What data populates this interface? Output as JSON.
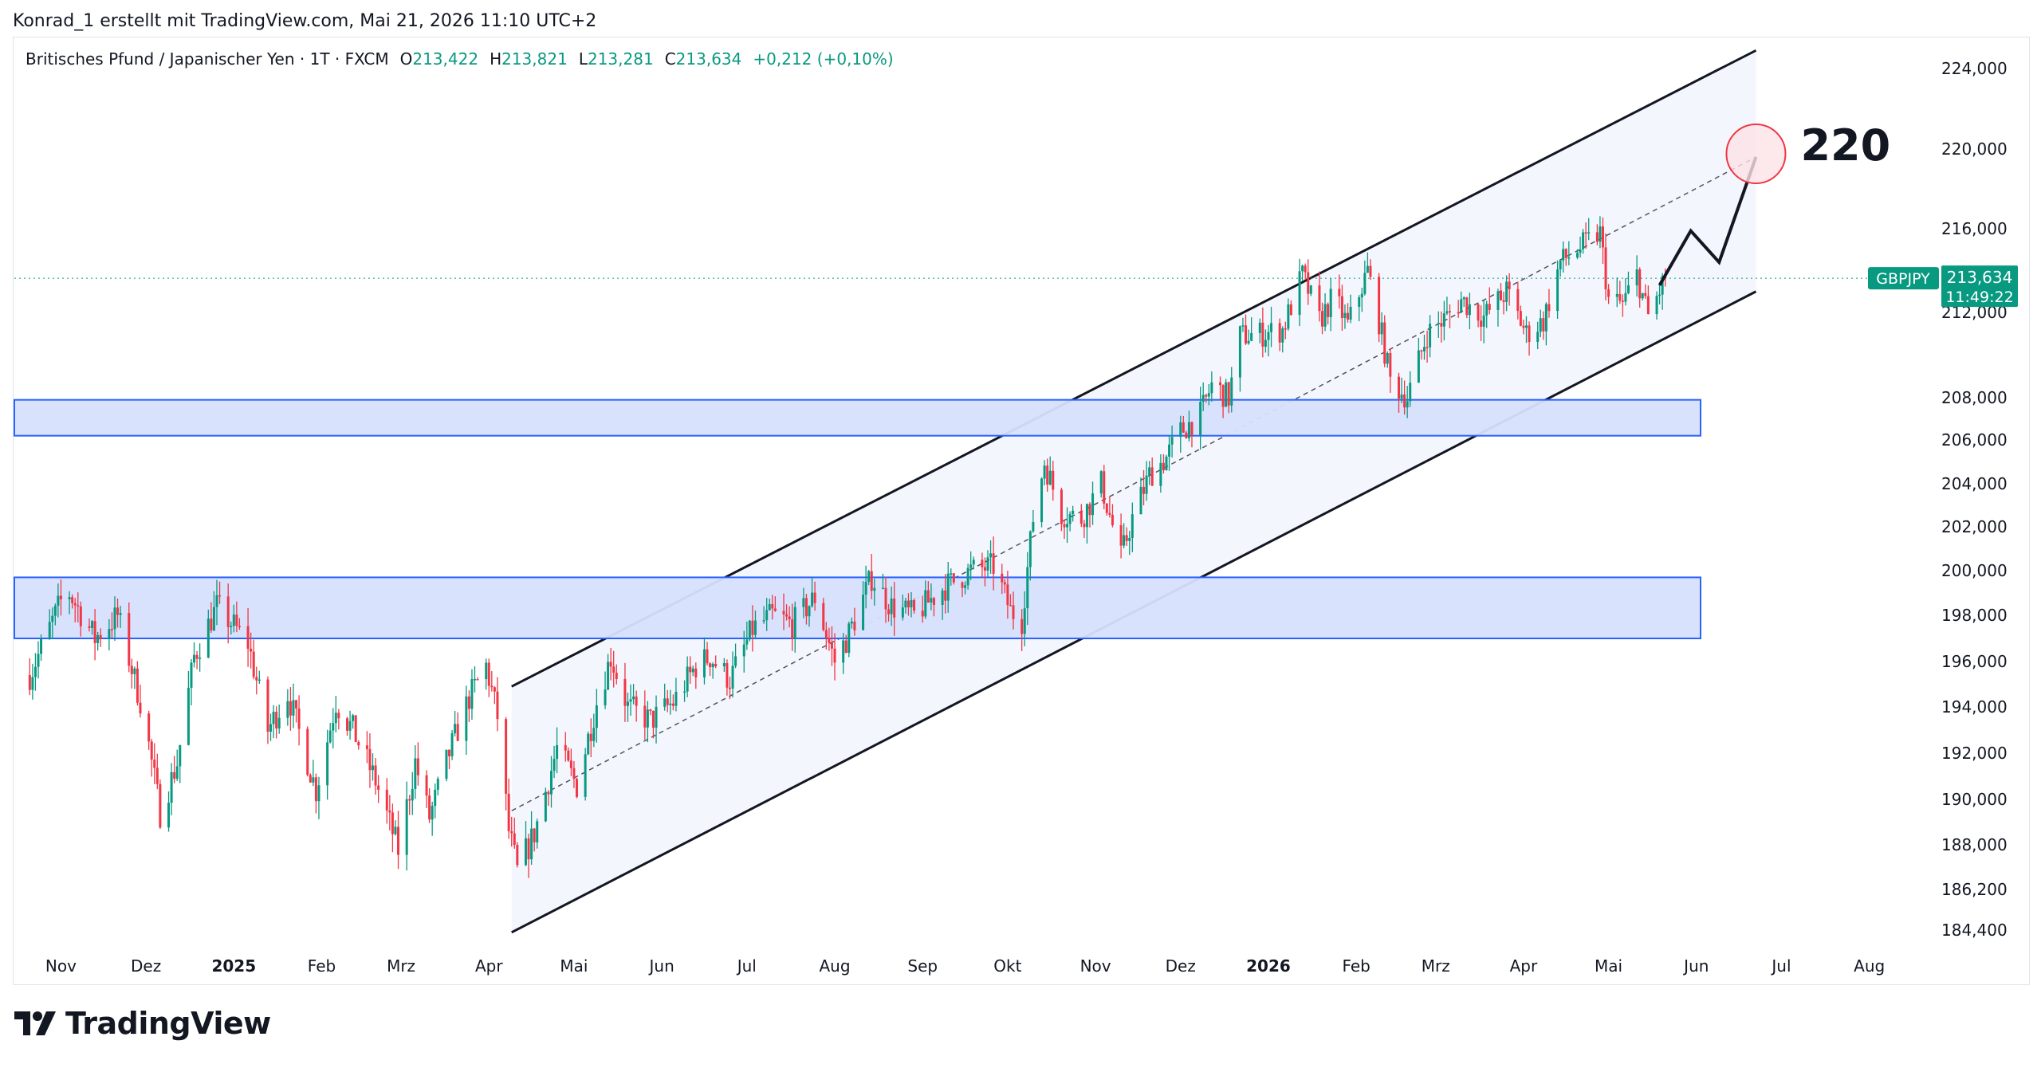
{
  "header": {
    "caption": "Konrad_1 erstellt mit TradingView.com, Mai 21, 2026 11:10 UTC+2"
  },
  "legend": {
    "instrument": "Britisches Pfund / Japanischer Yen · 1T · FXCM",
    "open_label": "O",
    "open": "213,422",
    "high_label": "H",
    "high": "213,821",
    "low_label": "L",
    "low": "213,281",
    "close_label": "C",
    "close": "213,634",
    "change": "+0,212 (+0,10%)"
  },
  "price_badge": {
    "symbol": "GBPJPY",
    "price": "213,634",
    "countdown": "11:49:22"
  },
  "annotation": {
    "target_label": "220"
  },
  "footer": {
    "brand": "TradingView"
  },
  "colors": {
    "up": "#089981",
    "down": "#f23645",
    "zone_fill": "#d6e0fc",
    "zone_border": "#2962ff",
    "channel_fill": "#f4f6fd",
    "target_circle": "#f23645"
  },
  "chart_data": {
    "type": "candlestick",
    "y_axis_labels": [
      "224,000",
      "220,000",
      "216,000",
      "212,000",
      "208,000",
      "206,000",
      "204,000",
      "202,000",
      "200,000",
      "198,000",
      "196,000",
      "194,000",
      "192,000",
      "190,000",
      "188,000",
      "186,200",
      "184,400"
    ],
    "x_axis_labels": [
      "Nov",
      "Dez",
      "2025",
      "Feb",
      "Mrz",
      "Apr",
      "Mai",
      "Jun",
      "Jul",
      "Aug",
      "Sep",
      "Okt",
      "Nov",
      "Dez",
      "2026",
      "Feb",
      "Mrz",
      "Apr",
      "Mai",
      "Jun",
      "Jul",
      "Aug"
    ],
    "bold_x_labels": [
      "2025",
      "2026"
    ],
    "last_price": 213.634,
    "zones": [
      {
        "from": 206.2,
        "to": 207.9
      },
      {
        "from": 197.0,
        "to": 199.7
      }
    ],
    "channel": {
      "start": "2025-04-09",
      "end": "2026-06-22",
      "lower_start": 184.3,
      "lower_end": 213.0,
      "upper_start": 194.9,
      "upper_end": 224.9,
      "mid_start": 189.5,
      "mid_end": 219.6
    },
    "projection": [
      {
        "date": "2026-05-19",
        "price": 213.3
      },
      {
        "date": "2026-05-30",
        "price": 215.9
      },
      {
        "date": "2026-06-09",
        "price": 214.4
      },
      {
        "date": "2026-06-22",
        "price": 219.6
      }
    ],
    "target": {
      "date": "2026-06-22",
      "price": 219.6
    },
    "anchors": [
      [
        "2024-10-21",
        195.4
      ],
      [
        "2024-11-03",
        199.2
      ],
      [
        "2024-11-13",
        197.0
      ],
      [
        "2024-11-21",
        198.0
      ],
      [
        "2024-11-30",
        193.8
      ],
      [
        "2024-12-06",
        189.4
      ],
      [
        "2024-12-12",
        191.6
      ],
      [
        "2024-12-18",
        196.2
      ],
      [
        "2024-12-26",
        198.4
      ],
      [
        "2025-01-06",
        196.8
      ],
      [
        "2025-01-13",
        193.0
      ],
      [
        "2025-01-20",
        194.6
      ],
      [
        "2025-01-30",
        190.4
      ],
      [
        "2025-02-06",
        194.2
      ],
      [
        "2025-02-12",
        193.0
      ],
      [
        "2025-02-20",
        190.8
      ],
      [
        "2025-02-28",
        187.8
      ],
      [
        "2025-03-06",
        191.6
      ],
      [
        "2025-03-11",
        189.2
      ],
      [
        "2025-03-18",
        192.0
      ],
      [
        "2025-03-25",
        194.4
      ],
      [
        "2025-03-31",
        195.8
      ],
      [
        "2025-04-04",
        193.6
      ],
      [
        "2025-04-08",
        188.6
      ],
      [
        "2025-04-11",
        186.9
      ],
      [
        "2025-04-17",
        188.5
      ],
      [
        "2025-04-25",
        192.2
      ],
      [
        "2025-05-02",
        190.6
      ],
      [
        "2025-05-09",
        194.2
      ],
      [
        "2025-05-14",
        196.2
      ],
      [
        "2025-05-20",
        194.0
      ],
      [
        "2025-05-28",
        193.4
      ],
      [
        "2025-06-05",
        194.2
      ],
      [
        "2025-06-13",
        195.8
      ],
      [
        "2025-06-18",
        196.2
      ],
      [
        "2025-06-25",
        195.2
      ],
      [
        "2025-07-03",
        197.4
      ],
      [
        "2025-07-10",
        198.0
      ],
      [
        "2025-07-17",
        197.6
      ],
      [
        "2025-07-25",
        198.8
      ],
      [
        "2025-08-01",
        196.0
      ],
      [
        "2025-08-06",
        197.2
      ],
      [
        "2025-08-14",
        199.7
      ],
      [
        "2025-08-21",
        198.4
      ],
      [
        "2025-08-29",
        198.0
      ],
      [
        "2025-09-08",
        199.2
      ],
      [
        "2025-09-18",
        200.0
      ],
      [
        "2025-09-26",
        200.2
      ],
      [
        "2025-10-02",
        198.2
      ],
      [
        "2025-10-06",
        197.8
      ],
      [
        "2025-10-10",
        202.4
      ],
      [
        "2025-10-14",
        205.0
      ],
      [
        "2025-10-20",
        202.6
      ],
      [
        "2025-10-27",
        202.4
      ],
      [
        "2025-11-03",
        204.0
      ],
      [
        "2025-11-10",
        200.6
      ],
      [
        "2025-11-14",
        202.4
      ],
      [
        "2025-11-20",
        204.4
      ],
      [
        "2025-11-26",
        205.2
      ],
      [
        "2025-12-01",
        206.4
      ],
      [
        "2025-12-08",
        207.2
      ],
      [
        "2025-12-12",
        208.6
      ],
      [
        "2025-12-18",
        208.0
      ],
      [
        "2025-12-22",
        210.9
      ],
      [
        "2025-12-30",
        211.0
      ],
      [
        "2026-01-06",
        211.2
      ],
      [
        "2026-01-13",
        213.8
      ],
      [
        "2026-01-19",
        211.6
      ],
      [
        "2026-01-24",
        212.8
      ],
      [
        "2026-01-29",
        211.4
      ],
      [
        "2026-02-05",
        214.0
      ],
      [
        "2026-02-09",
        211.6
      ],
      [
        "2026-02-13",
        208.8
      ],
      [
        "2026-02-19",
        208.0
      ],
      [
        "2026-02-26",
        211.0
      ],
      [
        "2026-03-05",
        211.8
      ],
      [
        "2026-03-10",
        212.6
      ],
      [
        "2026-03-18",
        211.8
      ],
      [
        "2026-03-26",
        213.0
      ],
      [
        "2026-04-02",
        211.0
      ],
      [
        "2026-04-08",
        211.6
      ],
      [
        "2026-04-14",
        214.4
      ],
      [
        "2026-04-22",
        215.2
      ],
      [
        "2026-04-28",
        215.8
      ],
      [
        "2026-05-01",
        212.6
      ],
      [
        "2026-05-06",
        212.4
      ],
      [
        "2026-05-11",
        213.8
      ],
      [
        "2026-05-15",
        211.8
      ],
      [
        "2026-05-21",
        213.634
      ]
    ]
  }
}
